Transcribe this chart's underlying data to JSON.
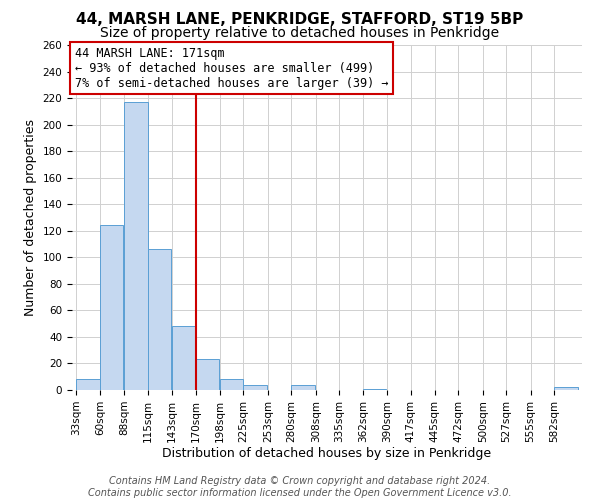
{
  "title": "44, MARSH LANE, PENKRIDGE, STAFFORD, ST19 5BP",
  "subtitle": "Size of property relative to detached houses in Penkridge",
  "xlabel": "Distribution of detached houses by size in Penkridge",
  "ylabel": "Number of detached properties",
  "bin_labels": [
    "33sqm",
    "60sqm",
    "88sqm",
    "115sqm",
    "143sqm",
    "170sqm",
    "198sqm",
    "225sqm",
    "253sqm",
    "280sqm",
    "308sqm",
    "335sqm",
    "362sqm",
    "390sqm",
    "417sqm",
    "445sqm",
    "472sqm",
    "500sqm",
    "527sqm",
    "555sqm",
    "582sqm"
  ],
  "bin_edges": [
    33,
    60,
    88,
    115,
    143,
    170,
    198,
    225,
    253,
    280,
    308,
    335,
    362,
    390,
    417,
    445,
    472,
    500,
    527,
    555,
    582
  ],
  "bar_values": [
    8,
    124,
    217,
    106,
    48,
    23,
    8,
    4,
    0,
    4,
    0,
    0,
    1,
    0,
    0,
    0,
    0,
    0,
    0,
    0,
    2
  ],
  "bar_color": "#c5d8f0",
  "bar_edgecolor": "#5a9fd4",
  "property_size": 171,
  "vline_color": "#cc0000",
  "annotation_line1": "44 MARSH LANE: 171sqm",
  "annotation_line2": "← 93% of detached houses are smaller (499)",
  "annotation_line3": "7% of semi-detached houses are larger (39) →",
  "annotation_box_edgecolor": "#cc0000",
  "ylim": [
    0,
    260
  ],
  "yticks": [
    0,
    20,
    40,
    60,
    80,
    100,
    120,
    140,
    160,
    180,
    200,
    220,
    240,
    260
  ],
  "footer_text": "Contains HM Land Registry data © Crown copyright and database right 2024.\nContains public sector information licensed under the Open Government Licence v3.0.",
  "bg_color": "#ffffff",
  "grid_color": "#d0d0d0",
  "title_fontsize": 11,
  "subtitle_fontsize": 10,
  "axis_label_fontsize": 9,
  "tick_fontsize": 7.5,
  "annotation_fontsize": 8.5,
  "footer_fontsize": 7
}
